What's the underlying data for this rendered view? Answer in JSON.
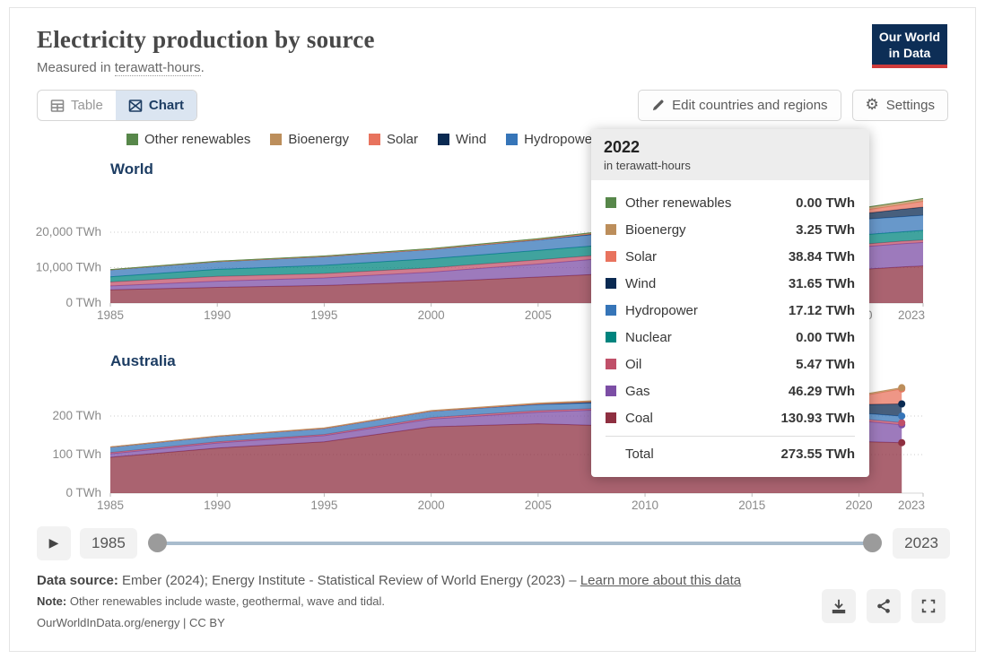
{
  "header": {
    "title": "Electricity production by source",
    "subtitle_prefix": "Measured in ",
    "subtitle_term": "terawatt-hours",
    "subtitle_suffix": ".",
    "logo_line1": "Our World",
    "logo_line2": "in Data"
  },
  "tabs": {
    "table": "Table",
    "chart": "Chart"
  },
  "toolbar": {
    "edit_label": "Edit countries and regions",
    "settings_label": "Settings"
  },
  "colors": {
    "other_renewables": "#57874a",
    "bioenergy": "#bc8e5b",
    "solar": "#e8735e",
    "wind": "#0a2a52",
    "hydropower": "#3675b8",
    "nuclear": "#00847e",
    "oil": "#c05069",
    "gas": "#7c4ea5",
    "coal": "#8e2f40",
    "accent_navy": "#1d3d63",
    "logo_bg": "#0d2e56",
    "logo_red": "#cf3b3b"
  },
  "legend": [
    {
      "label": "Other renewables",
      "color": "#57874a"
    },
    {
      "label": "Bioenergy",
      "color": "#bc8e5b"
    },
    {
      "label": "Solar",
      "color": "#e8735e"
    },
    {
      "label": "Wind",
      "color": "#0a2a52"
    },
    {
      "label": "Hydropower",
      "color": "#3675b8"
    },
    {
      "label": "Nuclear",
      "color": "#00847e"
    },
    {
      "label": "Oil",
      "color": "#c05069"
    },
    {
      "label": "Gas",
      "color": "#7c4ea5"
    },
    {
      "label": "Coal",
      "color": "#8e2f40"
    }
  ],
  "tooltip": {
    "year": "2022",
    "unit": "in terawatt-hours",
    "rows": [
      {
        "label": "Other renewables",
        "value": "0.00 TWh",
        "color": "#57874a"
      },
      {
        "label": "Bioenergy",
        "value": "3.25 TWh",
        "color": "#bc8e5b"
      },
      {
        "label": "Solar",
        "value": "38.84 TWh",
        "color": "#e8735e"
      },
      {
        "label": "Wind",
        "value": "31.65 TWh",
        "color": "#0a2a52"
      },
      {
        "label": "Hydropower",
        "value": "17.12 TWh",
        "color": "#3675b8"
      },
      {
        "label": "Nuclear",
        "value": "0.00 TWh",
        "color": "#00847e"
      },
      {
        "label": "Oil",
        "value": "5.47 TWh",
        "color": "#c05069"
      },
      {
        "label": "Gas",
        "value": "46.29 TWh",
        "color": "#7c4ea5"
      },
      {
        "label": "Coal",
        "value": "130.93 TWh",
        "color": "#8e2f40"
      }
    ],
    "total_label": "Total",
    "total_value": "273.55 TWh"
  },
  "timeline": {
    "start_year": "1985",
    "end_year": "2023"
  },
  "footer": {
    "source_label": "Data source:",
    "source_text": " Ember (2024); Energy Institute - Statistical Review of World Energy (2023) – ",
    "source_link": "Learn more about this data",
    "note_label": "Note:",
    "note_text": " Other renewables include waste, geothermal, wave and tidal.",
    "cc_line": "OurWorldInData.org/energy | CC BY"
  },
  "chart_data": [
    {
      "id": "world",
      "type": "area",
      "title": "World",
      "unit": "TWh",
      "stacked": true,
      "xlim": [
        1985,
        2023
      ],
      "xticks": [
        1985,
        1990,
        1995,
        2000,
        2005,
        2010,
        2015,
        2020,
        2023
      ],
      "yticks": [
        {
          "value": 0,
          "label": "0 TWh"
        },
        {
          "value": 10000,
          "label": "10,000 TWh"
        },
        {
          "value": 20000,
          "label": "20,000 TWh"
        }
      ],
      "x": [
        1985,
        1990,
        1995,
        2000,
        2005,
        2010,
        2015,
        2020,
        2022,
        2023
      ],
      "data_end_year": 2023,
      "end_dots": false,
      "series": [
        {
          "name": "Coal",
          "color": "#8e2f40",
          "values": [
            3740,
            4430,
            4950,
            5990,
            7330,
            8740,
            9540,
            9470,
            10200,
            10480
          ]
        },
        {
          "name": "Gas",
          "color": "#7c4ea5",
          "values": [
            1090,
            1750,
            2140,
            2750,
            3690,
            4850,
            5540,
            6340,
            6530,
            6630
          ]
        },
        {
          "name": "Oil",
          "color": "#c05069",
          "values": [
            1120,
            1330,
            1250,
            1210,
            1150,
            980,
            1000,
            730,
            750,
            690
          ]
        },
        {
          "name": "Nuclear",
          "color": "#00847e",
          "values": [
            1480,
            2000,
            2320,
            2580,
            2720,
            2740,
            2570,
            2670,
            2630,
            2740
          ]
        },
        {
          "name": "Hydropower",
          "color": "#3675b8",
          "values": [
            1950,
            2170,
            2460,
            2610,
            2900,
            3440,
            3880,
            4340,
            4270,
            4250
          ]
        },
        {
          "name": "Wind",
          "color": "#0a2a52",
          "values": [
            0,
            4,
            8,
            31,
            104,
            346,
            830,
            1590,
            2100,
            2310
          ]
        },
        {
          "name": "Solar",
          "color": "#e8735e",
          "values": [
            0,
            0,
            1,
            1,
            4,
            32,
            256,
            850,
            1320,
            1630
          ]
        },
        {
          "name": "Bioenergy",
          "color": "#bc8e5b",
          "values": [
            60,
            100,
            130,
            160,
            220,
            340,
            500,
            650,
            670,
            680
          ]
        },
        {
          "name": "Other renewables",
          "color": "#57874a",
          "values": [
            15,
            30,
            40,
            55,
            60,
            68,
            85,
            95,
            97,
            100
          ]
        }
      ]
    },
    {
      "id": "australia",
      "type": "area",
      "title": "Australia",
      "unit": "TWh",
      "stacked": true,
      "xlim": [
        1985,
        2023
      ],
      "xticks": [
        1985,
        1990,
        1995,
        2000,
        2005,
        2010,
        2015,
        2020,
        2023
      ],
      "yticks": [
        {
          "value": 0,
          "label": "0 TWh"
        },
        {
          "value": 100,
          "label": "100 TWh"
        },
        {
          "value": 200,
          "label": "200 TWh"
        }
      ],
      "x": [
        1985,
        1990,
        1995,
        2000,
        2005,
        2010,
        2015,
        2020,
        2022
      ],
      "data_end_year": 2022,
      "end_dots": true,
      "series": [
        {
          "name": "Coal",
          "color": "#8e2f40",
          "values": [
            93,
            117,
            133,
            172,
            180,
            172,
            159,
            134,
            130.93
          ]
        },
        {
          "name": "Gas",
          "color": "#7c4ea5",
          "values": [
            9,
            13,
            16,
            20,
            30,
            48,
            51,
            54,
            46.29
          ]
        },
        {
          "name": "Oil",
          "color": "#c05069",
          "values": [
            3,
            3,
            3,
            4,
            4,
            4,
            6,
            5,
            5.47
          ]
        },
        {
          "name": "Nuclear",
          "color": "#00847e",
          "values": [
            0,
            0,
            0,
            0,
            0,
            0,
            0,
            0,
            0
          ]
        },
        {
          "name": "Hydropower",
          "color": "#3675b8",
          "values": [
            14.5,
            14.5,
            16,
            16.7,
            15.8,
            13.5,
            13,
            15,
            17.12
          ]
        },
        {
          "name": "Wind",
          "color": "#0a2a52",
          "values": [
            0,
            0,
            0,
            0.1,
            1.7,
            5,
            11.5,
            22,
            31.65
          ]
        },
        {
          "name": "Solar",
          "color": "#e8735e",
          "values": [
            0,
            0,
            0,
            0,
            0,
            0.4,
            5.5,
            21,
            38.84
          ]
        },
        {
          "name": "Bioenergy",
          "color": "#bc8e5b",
          "values": [
            0.5,
            0.7,
            1,
            1.3,
            2,
            2.5,
            3.5,
            3.4,
            3.25
          ]
        },
        {
          "name": "Other renewables",
          "color": "#57874a",
          "values": [
            0,
            0,
            0,
            0,
            0,
            0,
            0,
            0,
            0
          ]
        }
      ]
    }
  ]
}
